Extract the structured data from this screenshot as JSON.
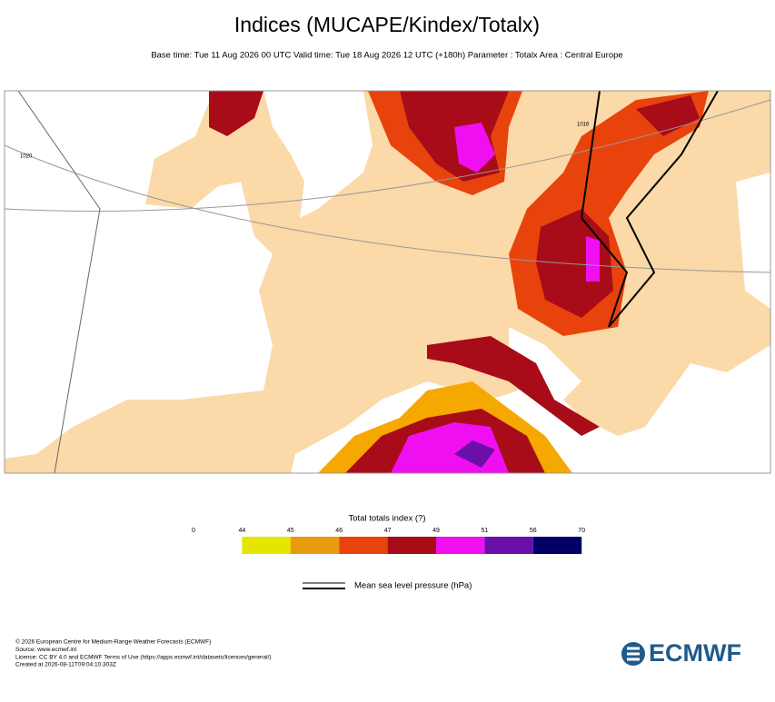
{
  "header": {
    "title": "Indices (MUCAPE/Kindex/Totalx)",
    "subtitle": "Base time: Tue 11 Aug 2026 00 UTC Valid time: Tue 18 Aug 2026 12 UTC (+180h) Parameter : Totalx Area : Central Europe"
  },
  "map": {
    "isobar_labels": [
      "1020",
      "1016"
    ]
  },
  "colorbar": {
    "title": "Total totals index (?)",
    "ticks": [
      0,
      44,
      45,
      46,
      47,
      49,
      51,
      56,
      70
    ],
    "colors": [
      "#e5e500",
      "#e89b0c",
      "#e8430c",
      "#a80c18",
      "#f00ff0",
      "#6a0fa8",
      "#000066"
    ]
  },
  "pressure_legend": {
    "label": "Mean sea level pressure (hPa)"
  },
  "footer": {
    "lines": [
      "© 2026 European Centre for Medium-Range Weather Forecasts (ECMWF)",
      "Source: www.ecmwf.int",
      "Licence: CC BY 4.0 and ECMWF Terms of Use (https://apps.ecmwf.int/datasets/licences/general/)",
      "Created at 2026-08-11T09:04:10.303Z"
    ]
  },
  "logo": "ECMWF"
}
